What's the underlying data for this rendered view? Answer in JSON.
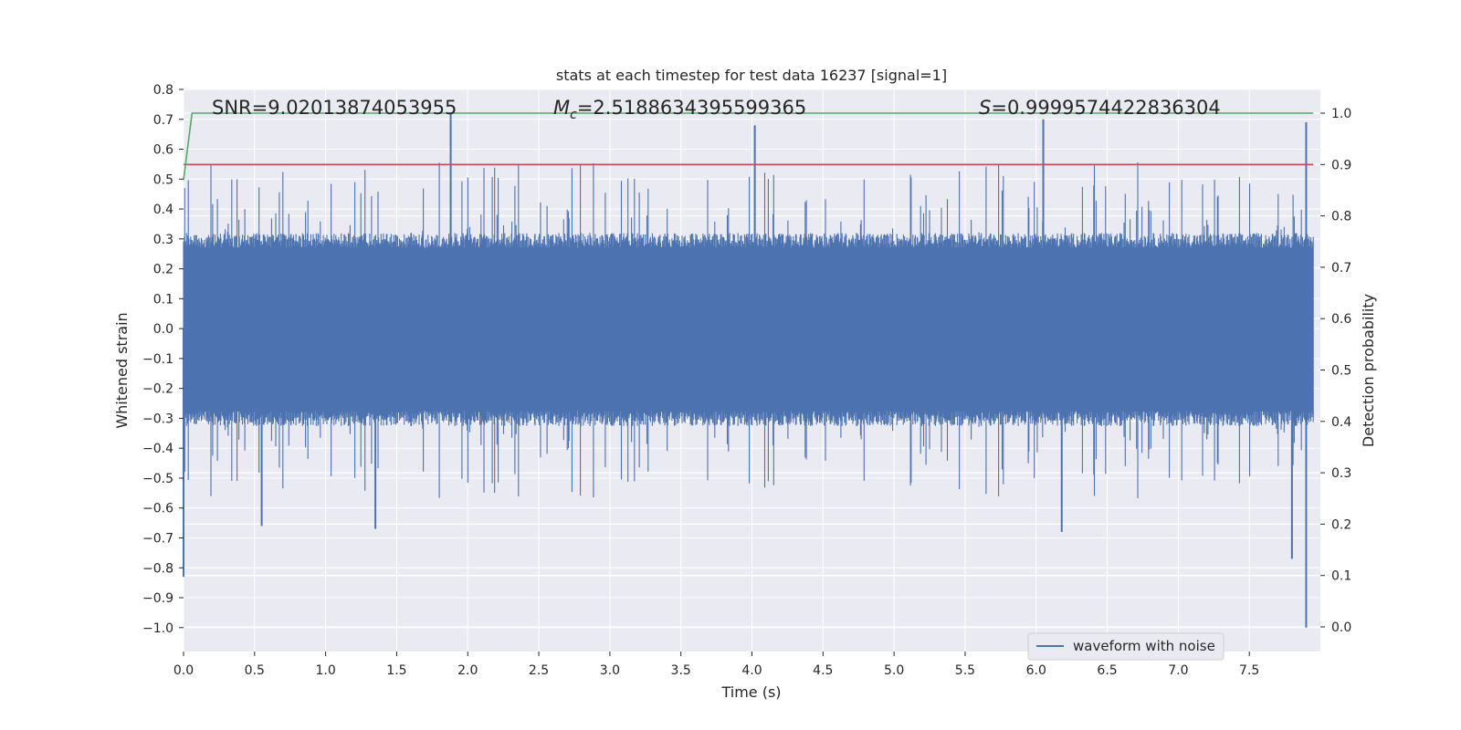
{
  "chart_data": {
    "type": "line",
    "title": "stats at each timestep for test data 16237 [signal=1]",
    "xlabel": "Time (s)",
    "ylabel_left": "Whitened strain",
    "ylabel_right": "Detection probability",
    "xlim": [
      0.0,
      8.0
    ],
    "ylim_left": [
      -1.08,
      0.8
    ],
    "ylim_right": [
      0.0,
      1.0
    ],
    "x_ticks": [
      "0.0",
      "0.5",
      "1.0",
      "1.5",
      "2.0",
      "2.5",
      "3.0",
      "3.5",
      "4.0",
      "4.5",
      "5.0",
      "5.5",
      "6.0",
      "6.5",
      "7.0",
      "7.5"
    ],
    "x_tick_values": [
      0.0,
      0.5,
      1.0,
      1.5,
      2.0,
      2.5,
      3.0,
      3.5,
      4.0,
      4.5,
      5.0,
      5.5,
      6.0,
      6.5,
      7.0,
      7.5
    ],
    "y_left_ticks": [
      "0.8",
      "0.7",
      "0.6",
      "0.5",
      "0.4",
      "0.3",
      "0.2",
      "0.1",
      "0.0",
      "−0.1",
      "−0.2",
      "−0.3",
      "−0.4",
      "−0.5",
      "−0.6",
      "−0.7",
      "−0.8",
      "−0.9",
      "−1.0"
    ],
    "y_left_tick_values": [
      0.8,
      0.7,
      0.6,
      0.5,
      0.4,
      0.3,
      0.2,
      0.1,
      0.0,
      -0.1,
      -0.2,
      -0.3,
      -0.4,
      -0.5,
      -0.6,
      -0.7,
      -0.8,
      -0.9,
      -1.0
    ],
    "y_right_ticks": [
      "1.0",
      "0.9",
      "0.8",
      "0.7",
      "0.6",
      "0.5",
      "0.4",
      "0.3",
      "0.2",
      "0.1",
      "0.0"
    ],
    "y_right_tick_values": [
      1.0,
      0.9,
      0.8,
      0.7,
      0.6,
      0.5,
      0.4,
      0.3,
      0.2,
      0.1,
      0.0
    ],
    "annotations": {
      "snr": "SNR=9.02013874053955",
      "mc_symbol": "M",
      "mc_sub": "c",
      "mc_value": "=2.5188634395599365",
      "s_symbol": "S",
      "s_value": "=0.9999574422836304"
    },
    "series": [
      {
        "name": "waveform with noise",
        "axis": "left",
        "color": "#4c72b0",
        "x_range": [
          0.0,
          7.95
        ],
        "envelope_typical": [
          -0.3,
          0.3
        ],
        "notable_peaks": [
          {
            "x": 1.88,
            "y": 0.72
          },
          {
            "x": 4.02,
            "y": 0.68
          },
          {
            "x": 6.05,
            "y": 0.7
          },
          {
            "x": 7.9,
            "y": 0.69
          }
        ],
        "notable_troughs": [
          {
            "x": 0.0,
            "y": -0.83
          },
          {
            "x": 0.55,
            "y": -0.66
          },
          {
            "x": 1.35,
            "y": -0.67
          },
          {
            "x": 6.18,
            "y": -0.68
          },
          {
            "x": 7.8,
            "y": -0.77
          },
          {
            "x": 7.9,
            "y": -1.0
          }
        ]
      },
      {
        "name": "detection probability",
        "axis": "right",
        "color": "#55a868",
        "points": [
          [
            0.0,
            0.87
          ],
          [
            0.06,
            1.0
          ],
          [
            7.95,
            1.0
          ]
        ]
      },
      {
        "name": "threshold",
        "axis": "right",
        "color": "#c44e52",
        "points": [
          [
            0.0,
            0.9
          ],
          [
            7.95,
            0.9
          ]
        ]
      }
    ],
    "legend": {
      "position": "lower-right",
      "entries": [
        {
          "label": "waveform with noise",
          "color": "#4c72b0"
        }
      ]
    },
    "grid": true
  }
}
